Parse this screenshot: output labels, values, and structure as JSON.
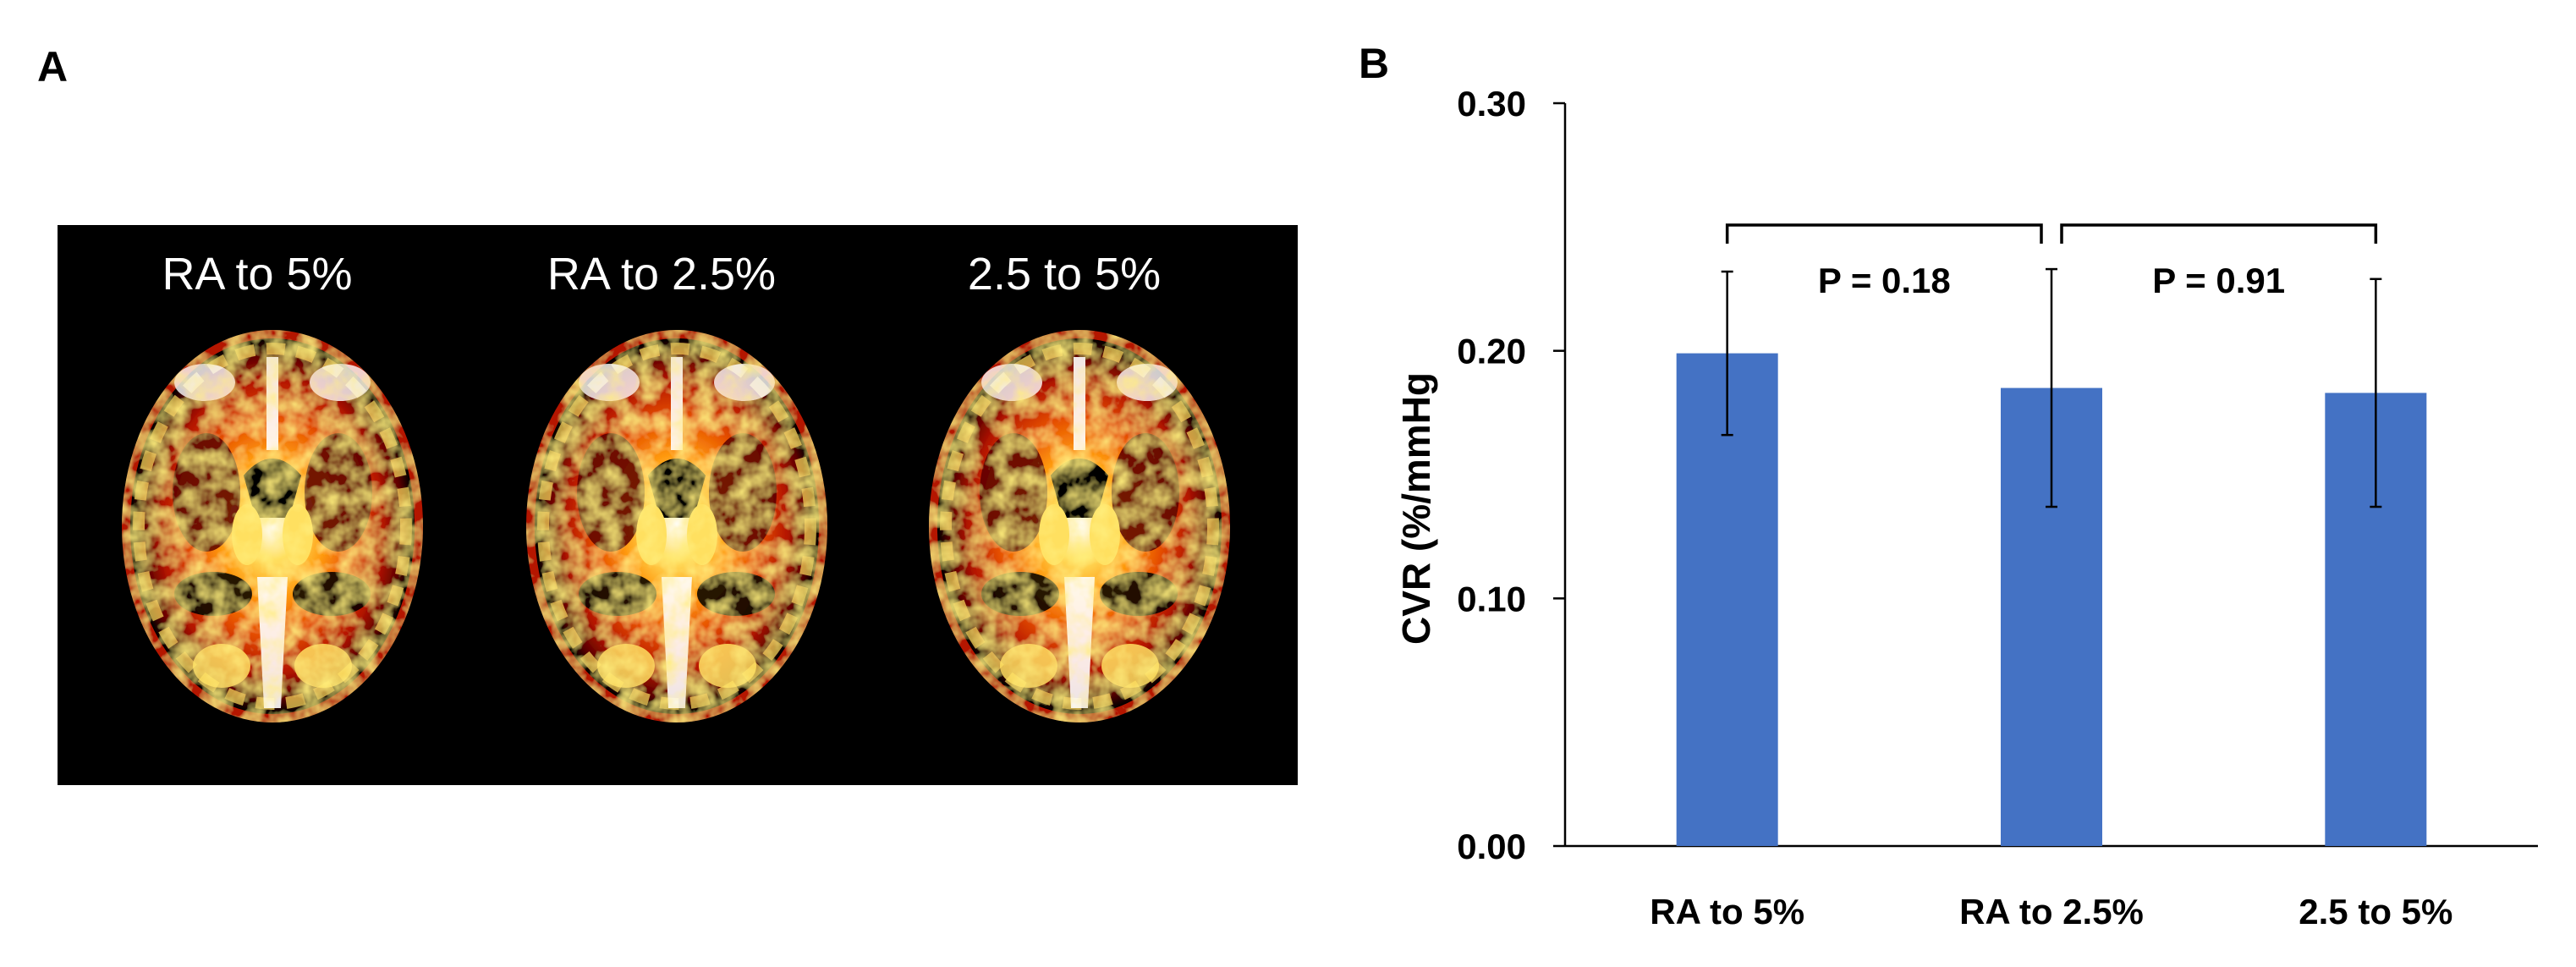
{
  "panels": {
    "a_label": "A",
    "b_label": "B"
  },
  "maps": {
    "titles": [
      "RA to 5%",
      "RA to 2.5%",
      "2.5 to 5%"
    ],
    "colormap": [
      "#000000",
      "#5a0000",
      "#b41400",
      "#e65000",
      "#ff9a10",
      "#ffe060",
      "#ffffff"
    ]
  },
  "chart_data": {
    "type": "bar",
    "title": "",
    "xlabel": "",
    "ylabel": "CVR (%/mmHg",
    "categories": [
      "RA to 5%",
      "RA to 2.5%",
      "2.5 to 5%"
    ],
    "values": [
      0.199,
      0.185,
      0.183
    ],
    "error": [
      0.033,
      0.048,
      0.046
    ],
    "ylim": [
      0,
      0.3
    ],
    "yticks": [
      0.0,
      0.1,
      0.2,
      0.3
    ],
    "ytick_labels": [
      "0.00",
      "0.10",
      "0.20",
      "0.30"
    ],
    "bar_color": "#4472c4",
    "grid": false,
    "annotations": [
      {
        "from": 0,
        "to": 1,
        "text": "P = 0.18"
      },
      {
        "from": 1,
        "to": 2,
        "text": "P = 0.91"
      }
    ]
  }
}
